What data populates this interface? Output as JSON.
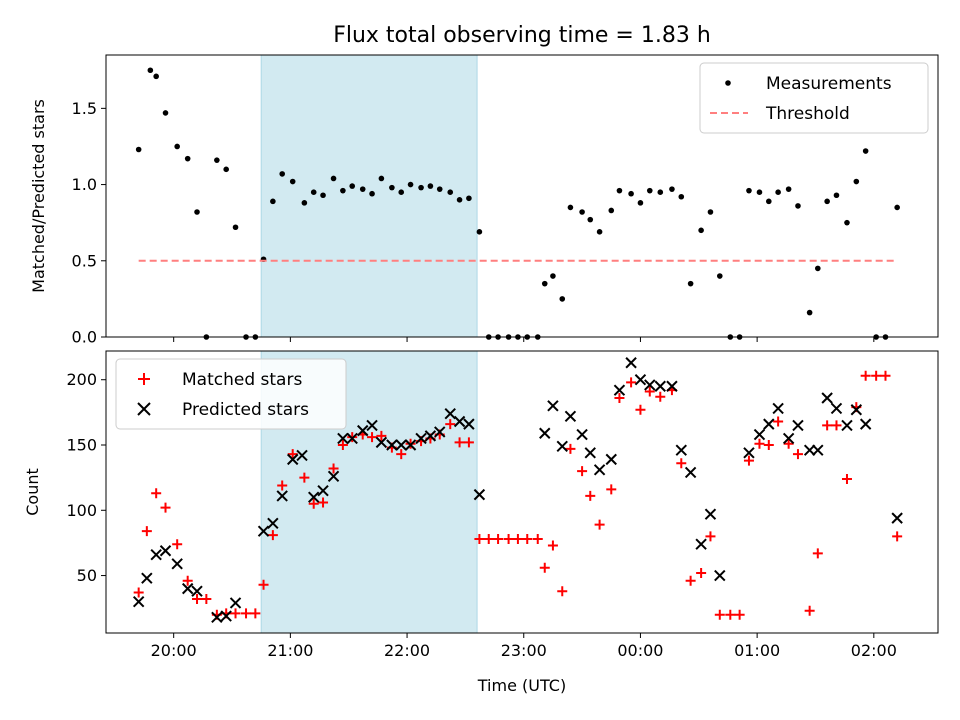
{
  "chart_data": [
    {
      "type": "scatter",
      "title": "Flux total observing time = 1.83 h",
      "xlabel": "",
      "ylabel": "Matched/Predicted stars",
      "xlim": [
        19.42,
        26.55
      ],
      "ylim": [
        0,
        1.85
      ],
      "yticks": [
        0.0,
        0.5,
        1.0,
        1.5
      ],
      "ytick_labels": [
        "0.0",
        "0.5",
        "1.0",
        "1.5"
      ],
      "xticks": [
        20,
        21,
        22,
        23,
        24,
        25,
        26
      ],
      "xtick_labels": [
        "",
        "",
        "",
        "",
        "",
        "",
        ""
      ],
      "shaded_span": {
        "x_start": 20.75,
        "x_end": 22.6,
        "color": "#add8e6"
      },
      "legend": {
        "position": "upper right",
        "entries": [
          "Measurements",
          "Threshold"
        ]
      },
      "series": [
        {
          "name": "Measurements",
          "color": "#000000",
          "marker": "dot",
          "points": [
            [
              19.7,
              1.23
            ],
            [
              19.8,
              1.75
            ],
            [
              19.85,
              1.71
            ],
            [
              19.93,
              1.47
            ],
            [
              20.03,
              1.25
            ],
            [
              20.12,
              1.17
            ],
            [
              20.2,
              0.82
            ],
            [
              20.28,
              0.0
            ],
            [
              20.37,
              1.16
            ],
            [
              20.45,
              1.1
            ],
            [
              20.53,
              0.72
            ],
            [
              20.62,
              0.0
            ],
            [
              20.7,
              0.0
            ],
            [
              20.77,
              0.51
            ],
            [
              20.85,
              0.89
            ],
            [
              20.93,
              1.07
            ],
            [
              21.02,
              1.02
            ],
            [
              21.12,
              0.88
            ],
            [
              21.2,
              0.95
            ],
            [
              21.28,
              0.93
            ],
            [
              21.37,
              1.04
            ],
            [
              21.45,
              0.96
            ],
            [
              21.53,
              0.99
            ],
            [
              21.62,
              0.97
            ],
            [
              21.7,
              0.94
            ],
            [
              21.78,
              1.04
            ],
            [
              21.87,
              0.98
            ],
            [
              21.95,
              0.95
            ],
            [
              22.03,
              1.0
            ],
            [
              22.12,
              0.98
            ],
            [
              22.2,
              0.99
            ],
            [
              22.28,
              0.97
            ],
            [
              22.37,
              0.95
            ],
            [
              22.45,
              0.9
            ],
            [
              22.53,
              0.91
            ],
            [
              22.62,
              0.69
            ],
            [
              22.7,
              0.0
            ],
            [
              22.78,
              0.0
            ],
            [
              22.87,
              0.0
            ],
            [
              22.95,
              0.0
            ],
            [
              23.03,
              0.0
            ],
            [
              23.12,
              0.0
            ],
            [
              23.18,
              0.35
            ],
            [
              23.25,
              0.4
            ],
            [
              23.33,
              0.25
            ],
            [
              23.4,
              0.85
            ],
            [
              23.5,
              0.82
            ],
            [
              23.57,
              0.77
            ],
            [
              23.65,
              0.69
            ],
            [
              23.75,
              0.83
            ],
            [
              23.82,
              0.96
            ],
            [
              23.92,
              0.94
            ],
            [
              24.0,
              0.88
            ],
            [
              24.08,
              0.96
            ],
            [
              24.17,
              0.95
            ],
            [
              24.27,
              0.97
            ],
            [
              24.35,
              0.92
            ],
            [
              24.43,
              0.35
            ],
            [
              24.52,
              0.7
            ],
            [
              24.6,
              0.82
            ],
            [
              24.68,
              0.4
            ],
            [
              24.77,
              0.0
            ],
            [
              24.85,
              0.0
            ],
            [
              24.93,
              0.96
            ],
            [
              25.02,
              0.95
            ],
            [
              25.1,
              0.89
            ],
            [
              25.18,
              0.95
            ],
            [
              25.27,
              0.97
            ],
            [
              25.35,
              0.86
            ],
            [
              25.45,
              0.16
            ],
            [
              25.52,
              0.45
            ],
            [
              25.6,
              0.89
            ],
            [
              25.68,
              0.93
            ],
            [
              25.77,
              0.75
            ],
            [
              25.85,
              1.02
            ],
            [
              25.93,
              1.22
            ],
            [
              26.02,
              0.0
            ],
            [
              26.1,
              0.0
            ],
            [
              26.2,
              0.85
            ]
          ]
        },
        {
          "name": "Threshold",
          "color": "#ff7f7f",
          "style": "dashed",
          "points": [
            [
              19.7,
              0.5
            ],
            [
              26.2,
              0.5
            ]
          ]
        }
      ]
    },
    {
      "type": "scatter",
      "title": "",
      "xlabel": "Time (UTC)",
      "ylabel": "Count",
      "xlim": [
        19.42,
        26.55
      ],
      "ylim": [
        6,
        222
      ],
      "yticks": [
        50,
        100,
        150,
        200
      ],
      "ytick_labels": [
        "50",
        "100",
        "150",
        "200"
      ],
      "xticks": [
        20,
        21,
        22,
        23,
        24,
        25,
        26
      ],
      "xtick_labels": [
        "20:00",
        "21:00",
        "22:00",
        "23:00",
        "00:00",
        "01:00",
        "02:00"
      ],
      "shaded_span": {
        "x_start": 20.75,
        "x_end": 22.6,
        "color": "#add8e6"
      },
      "legend": {
        "position": "upper left",
        "entries": [
          "Matched stars",
          "Predicted stars"
        ]
      },
      "series": [
        {
          "name": "Matched stars",
          "color": "#ff0000",
          "marker": "plus",
          "points": [
            [
              19.7,
              37
            ],
            [
              19.77,
              84
            ],
            [
              19.85,
              113
            ],
            [
              19.93,
              102
            ],
            [
              20.03,
              74
            ],
            [
              20.12,
              46
            ],
            [
              20.2,
              32
            ],
            [
              20.28,
              32
            ],
            [
              20.37,
              20
            ],
            [
              20.45,
              21
            ],
            [
              20.53,
              21
            ],
            [
              20.62,
              21
            ],
            [
              20.7,
              21
            ],
            [
              20.77,
              43
            ],
            [
              20.85,
              81
            ],
            [
              20.93,
              119
            ],
            [
              21.02,
              143
            ],
            [
              21.12,
              125
            ],
            [
              21.2,
              105
            ],
            [
              21.28,
              106
            ],
            [
              21.37,
              132
            ],
            [
              21.45,
              150
            ],
            [
              21.53,
              156
            ],
            [
              21.62,
              158
            ],
            [
              21.7,
              156
            ],
            [
              21.78,
              157
            ],
            [
              21.87,
              148
            ],
            [
              21.95,
              143
            ],
            [
              22.03,
              151
            ],
            [
              22.12,
              153
            ],
            [
              22.2,
              155
            ],
            [
              22.28,
              158
            ],
            [
              22.37,
              166
            ],
            [
              22.45,
              152
            ],
            [
              22.53,
              152
            ],
            [
              22.62,
              78
            ],
            [
              22.7,
              78
            ],
            [
              22.78,
              78
            ],
            [
              22.87,
              78
            ],
            [
              22.95,
              78
            ],
            [
              23.03,
              78
            ],
            [
              23.12,
              78
            ],
            [
              23.18,
              56
            ],
            [
              23.25,
              73
            ],
            [
              23.33,
              38
            ],
            [
              23.4,
              147
            ],
            [
              23.5,
              130
            ],
            [
              23.57,
              111
            ],
            [
              23.65,
              89
            ],
            [
              23.75,
              116
            ],
            [
              23.82,
              186
            ],
            [
              23.92,
              198
            ],
            [
              24.0,
              177
            ],
            [
              24.08,
              191
            ],
            [
              24.17,
              187
            ],
            [
              24.27,
              192
            ],
            [
              24.35,
              136
            ],
            [
              24.43,
              46
            ],
            [
              24.52,
              52
            ],
            [
              24.6,
              80
            ],
            [
              24.68,
              20
            ],
            [
              24.77,
              20
            ],
            [
              24.85,
              20
            ],
            [
              24.93,
              138
            ],
            [
              25.02,
              151
            ],
            [
              25.1,
              150
            ],
            [
              25.18,
              168
            ],
            [
              25.27,
              151
            ],
            [
              25.35,
              143
            ],
            [
              25.45,
              23
            ],
            [
              25.52,
              67
            ],
            [
              25.6,
              165
            ],
            [
              25.68,
              165
            ],
            [
              25.77,
              124
            ],
            [
              25.85,
              179
            ],
            [
              25.93,
              203
            ],
            [
              26.02,
              203
            ],
            [
              26.1,
              203
            ],
            [
              26.2,
              80
            ]
          ]
        },
        {
          "name": "Predicted stars",
          "color": "#000000",
          "marker": "x",
          "points": [
            [
              19.7,
              30
            ],
            [
              19.77,
              48
            ],
            [
              19.85,
              66
            ],
            [
              19.93,
              69
            ],
            [
              20.03,
              59
            ],
            [
              20.12,
              40
            ],
            [
              20.2,
              38
            ],
            [
              20.37,
              18
            ],
            [
              20.45,
              19
            ],
            [
              20.53,
              29
            ],
            [
              20.77,
              84
            ],
            [
              20.85,
              90
            ],
            [
              20.93,
              111
            ],
            [
              21.02,
              139
            ],
            [
              21.1,
              142
            ],
            [
              21.2,
              110
            ],
            [
              21.28,
              115
            ],
            [
              21.37,
              126
            ],
            [
              21.45,
              155
            ],
            [
              21.53,
              155
            ],
            [
              21.62,
              161
            ],
            [
              21.7,
              165
            ],
            [
              21.78,
              152
            ],
            [
              21.87,
              150
            ],
            [
              21.95,
              150
            ],
            [
              22.03,
              150
            ],
            [
              22.12,
              155
            ],
            [
              22.2,
              157
            ],
            [
              22.28,
              160
            ],
            [
              22.37,
              174
            ],
            [
              22.45,
              168
            ],
            [
              22.53,
              166
            ],
            [
              22.62,
              112
            ],
            [
              23.18,
              159
            ],
            [
              23.25,
              180
            ],
            [
              23.33,
              149
            ],
            [
              23.4,
              172
            ],
            [
              23.5,
              158
            ],
            [
              23.57,
              144
            ],
            [
              23.65,
              131
            ],
            [
              23.75,
              139
            ],
            [
              23.82,
              192
            ],
            [
              23.92,
              213
            ],
            [
              24.0,
              200
            ],
            [
              24.08,
              196
            ],
            [
              24.17,
              195
            ],
            [
              24.27,
              195
            ],
            [
              24.35,
              146
            ],
            [
              24.43,
              129
            ],
            [
              24.52,
              74
            ],
            [
              24.6,
              97
            ],
            [
              24.68,
              50
            ],
            [
              24.93,
              144
            ],
            [
              25.02,
              158
            ],
            [
              25.1,
              166
            ],
            [
              25.18,
              178
            ],
            [
              25.27,
              155
            ],
            [
              25.35,
              165
            ],
            [
              25.45,
              146
            ],
            [
              25.52,
              146
            ],
            [
              25.6,
              186
            ],
            [
              25.68,
              178
            ],
            [
              25.77,
              165
            ],
            [
              25.85,
              177
            ],
            [
              25.93,
              166
            ],
            [
              26.2,
              94
            ]
          ]
        }
      ]
    }
  ]
}
